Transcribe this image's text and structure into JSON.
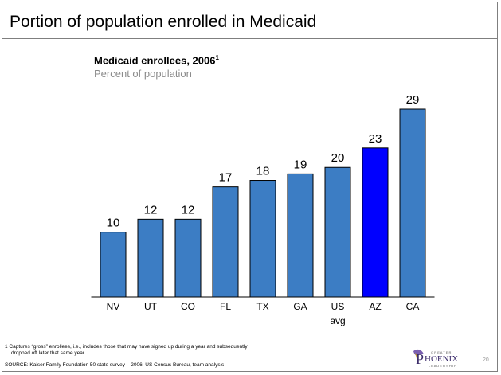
{
  "slide": {
    "title": "Portion of population enrolled in Medicaid",
    "page_number": "20",
    "footnote_line1": "1 Captures “gross” enrollees, i.e., includes those that may have signed up during a year and subsequently",
    "footnote_line2": "dropped off later that same year",
    "source": "SOURCE:  Kaiser Family Foundation 50 state survey – 2006, US Census Bureau, team analysis"
  },
  "logo": {
    "main_text": "HOENIX",
    "initial": "P",
    "top_text": "G R E A T E R",
    "bottom_text": "L E A D E R S H I P"
  },
  "chart_data": {
    "type": "bar",
    "title": "Medicaid enrollees, 2006",
    "title_superscript": "1",
    "subtitle": "Percent of population",
    "categories": [
      "NV",
      "UT",
      "CO",
      "FL",
      "TX",
      "GA",
      "US",
      "AZ",
      "CA"
    ],
    "category_sublabels": [
      "",
      "",
      "",
      "",
      "",
      "",
      "avg",
      "",
      ""
    ],
    "values": [
      10,
      12,
      12,
      17,
      18,
      19,
      20,
      23,
      29
    ],
    "highlight_category": "AZ",
    "colors": {
      "bar": "#3c7dc4",
      "highlight": "#0000ff",
      "outline": "#000000"
    },
    "ylim": [
      0,
      29
    ],
    "grid": false,
    "legend": "none"
  }
}
